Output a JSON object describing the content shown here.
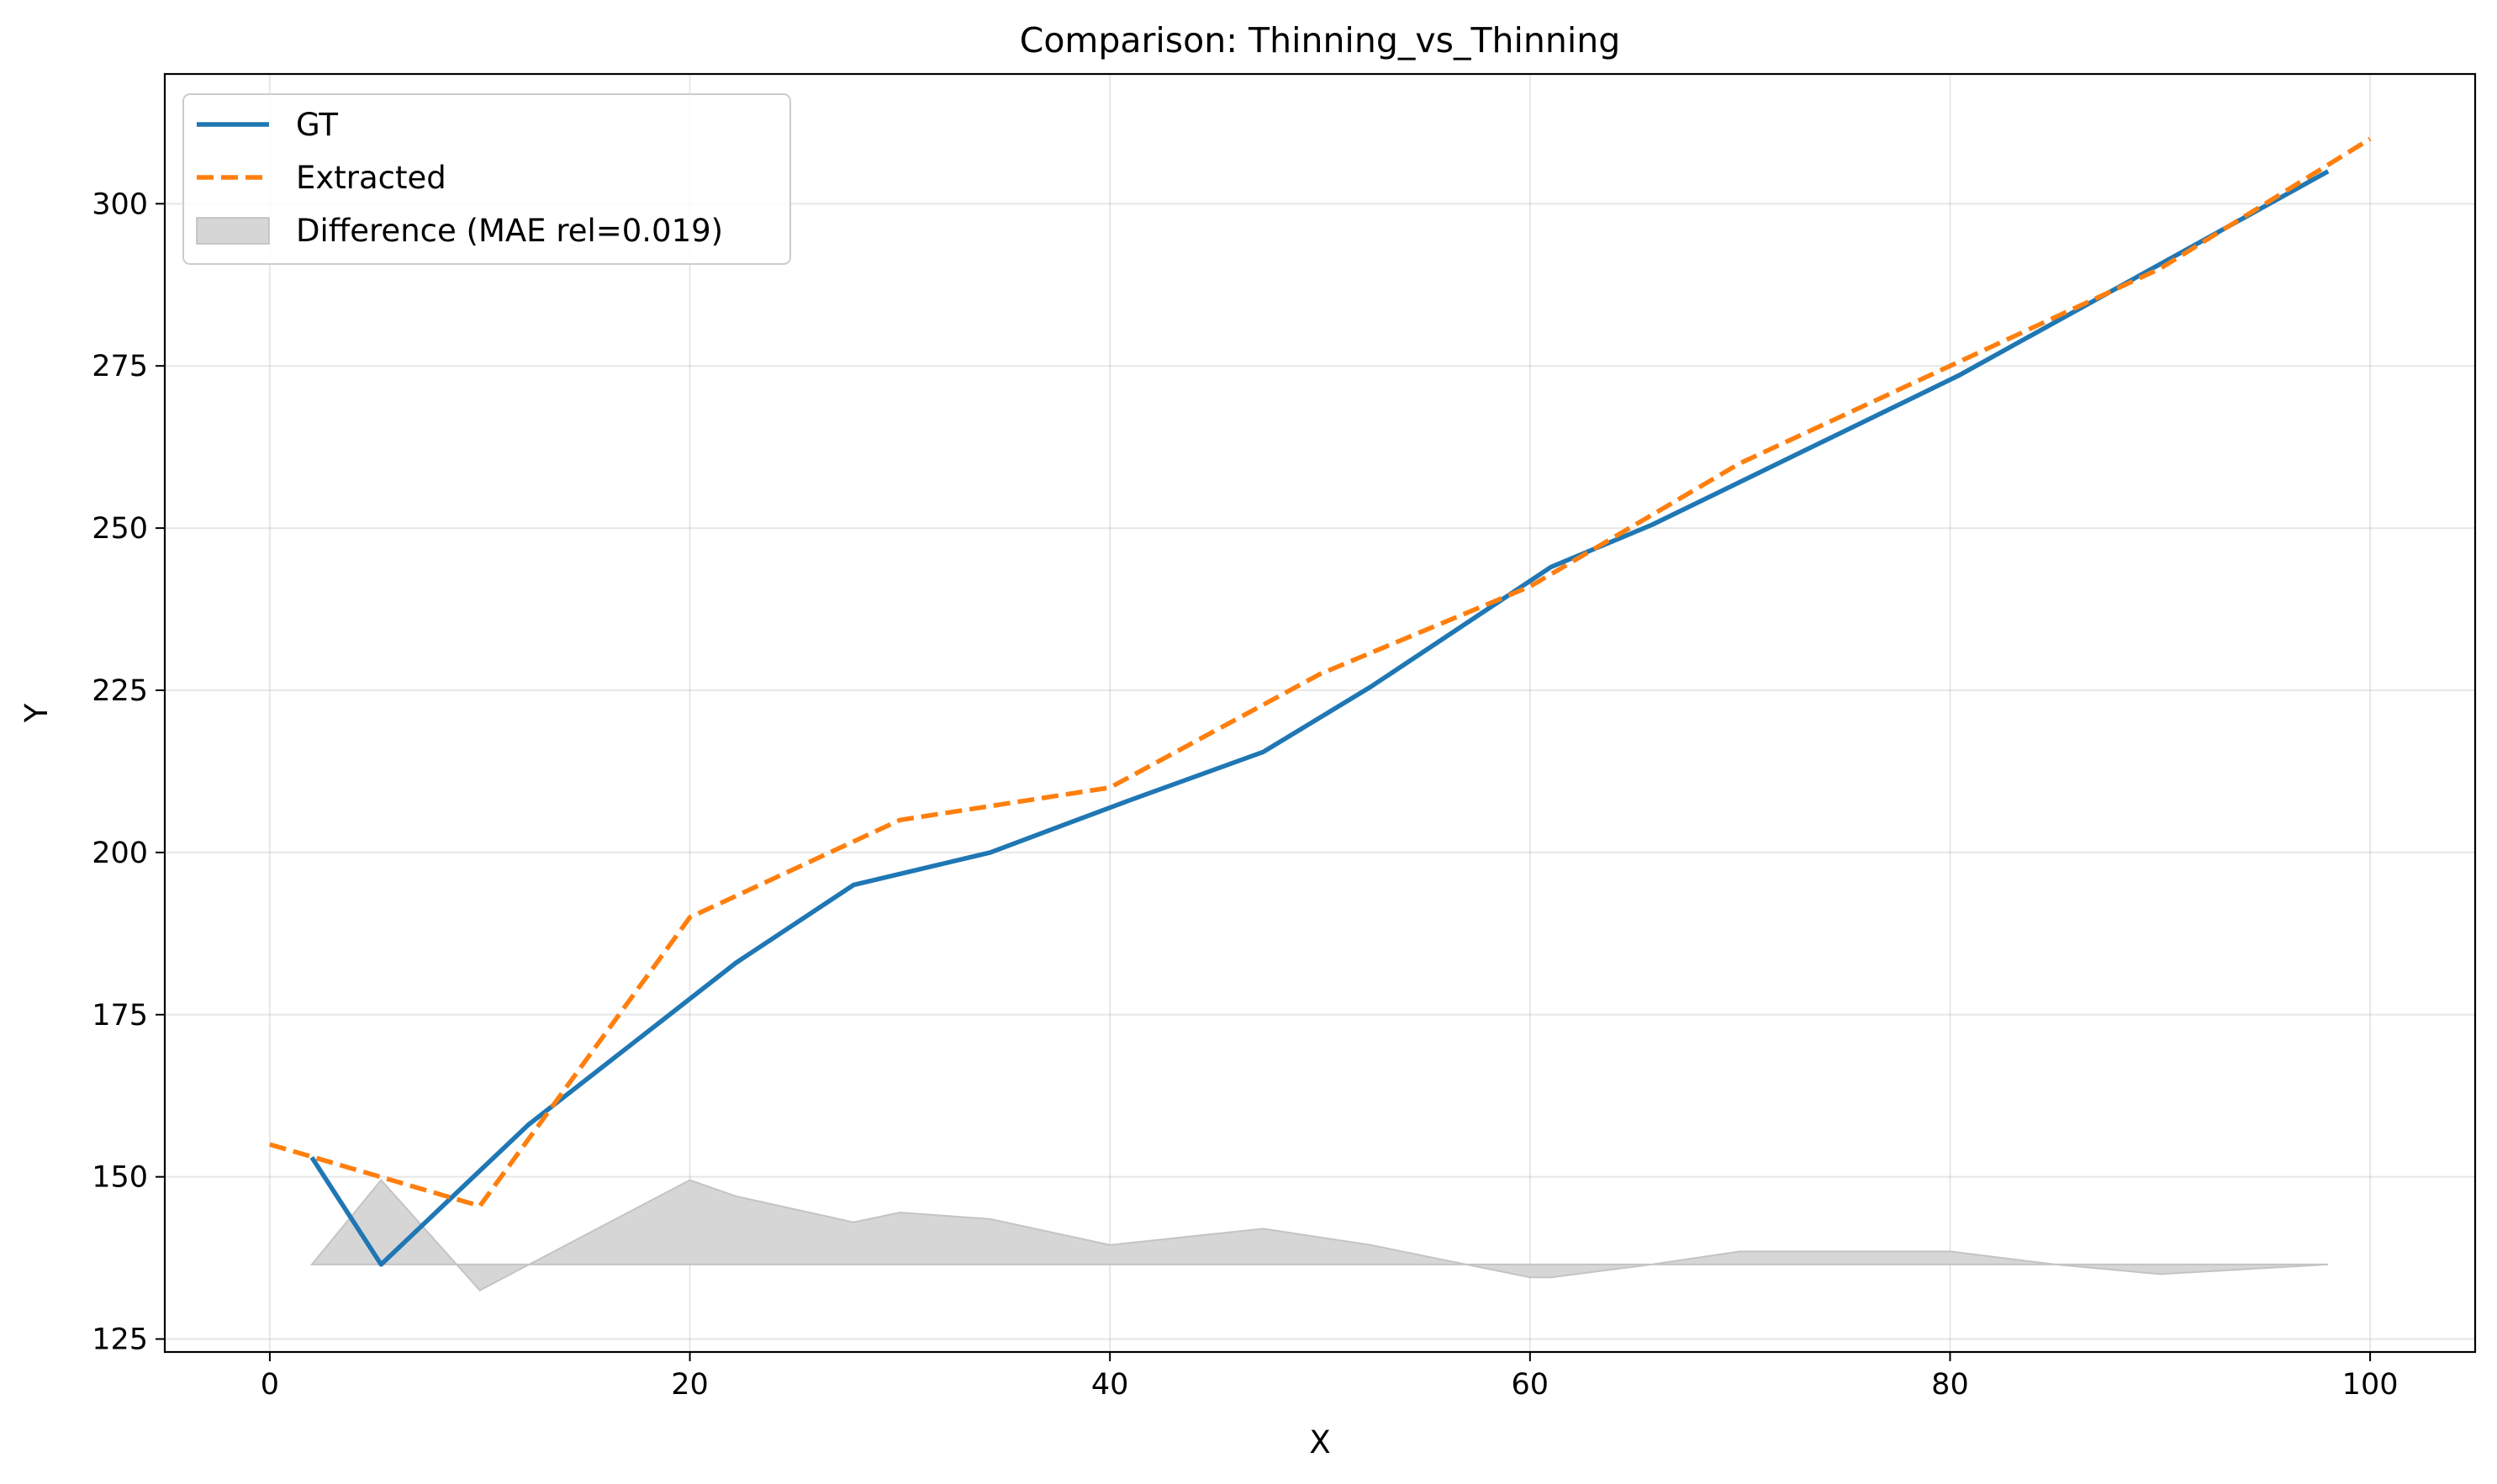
{
  "chart_data": {
    "type": "line",
    "title": "Comparison: Thinning_vs_Thinning",
    "xlabel": "X",
    "ylabel": "Y",
    "xlim": [
      -5,
      105
    ],
    "ylim": [
      123,
      320
    ],
    "xticks": [
      0,
      20,
      40,
      60,
      80,
      100
    ],
    "yticks": [
      125,
      150,
      175,
      200,
      225,
      250,
      275,
      300
    ],
    "grid": true,
    "legend_position": "upper-left",
    "series": [
      {
        "name": "GT",
        "style": "solid",
        "color": "#1f77b4",
        "x": [
          2.0,
          5.3,
          12.3,
          22.2,
          27.8,
          34.3,
          40.9,
          47.3,
          52.4,
          61.0,
          65.8,
          80.4,
          98.0
        ],
        "y": [
          153.0,
          136.5,
          158.0,
          183.0,
          195.0,
          200.0,
          208.0,
          215.5,
          225.5,
          244.0,
          250.5,
          273.5,
          305.0
        ]
      },
      {
        "name": "Extracted",
        "style": "dashed",
        "color": "#ff7f0e",
        "x": [
          0.0,
          10.0,
          20.0,
          30.0,
          40.0,
          50.0,
          60.0,
          70.0,
          80.0,
          90.0,
          100.0
        ],
        "y": [
          155.0,
          145.5,
          190.0,
          205.0,
          210.0,
          227.5,
          241.0,
          260.0,
          275.0,
          290.0,
          310.0
        ]
      },
      {
        "name": "Difference (MAE rel=0.019)",
        "style": "fill",
        "color": "#d6d6d6",
        "baseline": 136.5,
        "x": [
          2.0,
          5.3,
          10.0,
          20.0,
          22.2,
          27.8,
          30.0,
          34.3,
          40.0,
          47.3,
          52.4,
          60.0,
          61.0,
          65.8,
          70.0,
          80.0,
          85.0,
          90.0,
          98.0
        ],
        "y": [
          136.5,
          149.5,
          132.5,
          149.5,
          147.0,
          143.0,
          144.5,
          143.5,
          139.5,
          142.0,
          139.5,
          134.5,
          134.5,
          136.5,
          138.5,
          138.5,
          136.5,
          135.0,
          136.5
        ]
      }
    ]
  }
}
